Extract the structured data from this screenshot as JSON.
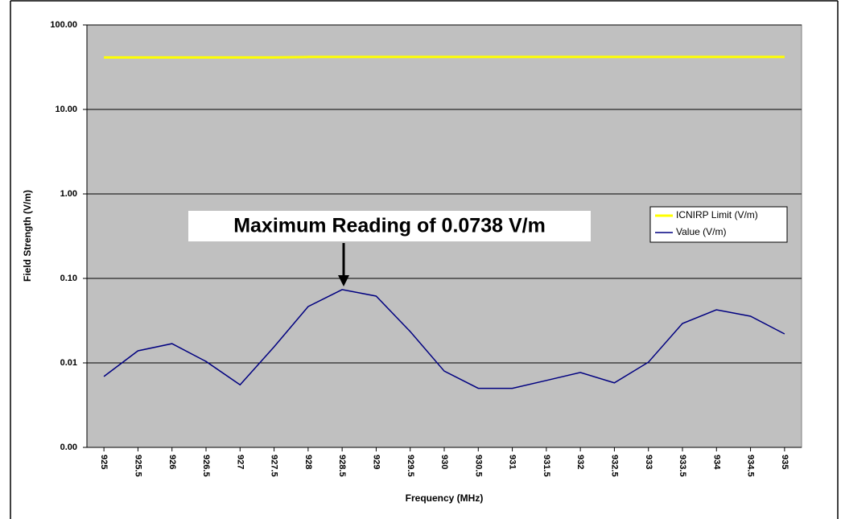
{
  "chart_data": {
    "type": "line",
    "x_label": "Frequency (MHz)",
    "y_label": "Field Strength (V/m)",
    "categories": [
      "925",
      "925.5",
      "926",
      "926.5",
      "927",
      "927.5",
      "928",
      "928.5",
      "929",
      "929.5",
      "930",
      "930.5",
      "931",
      "931.5",
      "932",
      "932.5",
      "933",
      "933.5",
      "934",
      "934.5",
      "935"
    ],
    "series": [
      {
        "name": "ICNIRP Limit (V/m)",
        "color": "#ffff00",
        "values": [
          41.2,
          41.2,
          41.2,
          41.2,
          41.2,
          41.2,
          41.8,
          41.8,
          41.8,
          41.8,
          41.8,
          41.8,
          41.8,
          41.8,
          41.8,
          41.8,
          41.8,
          41.8,
          41.8,
          41.8,
          41.8
        ]
      },
      {
        "name": "Value (V/m)",
        "color": "#000080",
        "values": [
          0.0069,
          0.0139,
          0.0169,
          0.0104,
          0.0055,
          0.0155,
          0.0464,
          0.0738,
          0.0617,
          0.0235,
          0.008,
          0.005,
          0.005,
          0.0062,
          0.0077,
          0.0058,
          0.0102,
          0.0293,
          0.0425,
          0.0357,
          0.022
        ]
      }
    ],
    "log_y": true,
    "ylim": [
      0.001,
      100
    ],
    "yticks": [
      {
        "value": 0.001,
        "label": "0.00"
      },
      {
        "value": 0.01,
        "label": "0.01"
      },
      {
        "value": 0.1,
        "label": "0.10"
      },
      {
        "value": 1,
        "label": "1.00"
      },
      {
        "value": 10,
        "label": "10.00"
      },
      {
        "value": 100,
        "label": "100.00"
      }
    ],
    "grid": true,
    "legend": "right",
    "annotation": "Maximum Reading of 0.0738 V/m"
  }
}
